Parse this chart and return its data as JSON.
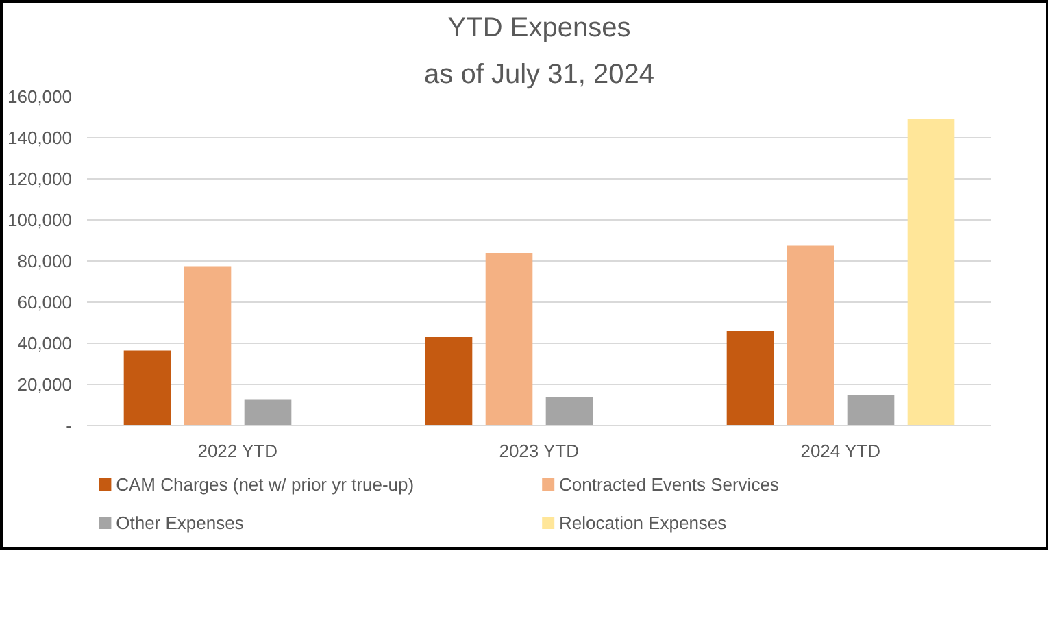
{
  "chart_data": {
    "type": "bar",
    "title": "YTD Expenses",
    "subtitle": "as of July 31, 2024",
    "categories": [
      "2022 YTD",
      "2023 YTD",
      "2024 YTD"
    ],
    "series": [
      {
        "name": "CAM Charges (net w/ prior yr true-up)",
        "color": "#c55a11",
        "values": [
          36500,
          43000,
          46000
        ]
      },
      {
        "name": "Contracted Events Services",
        "color": "#f4b183",
        "values": [
          77500,
          84000,
          87500
        ]
      },
      {
        "name": "Other Expenses",
        "color": "#a5a5a5",
        "values": [
          12500,
          14000,
          15000
        ]
      },
      {
        "name": "Relocation Expenses",
        "color": "#ffe699",
        "values": [
          null,
          null,
          149000
        ]
      }
    ],
    "ylim": [
      0,
      160000
    ],
    "yticks": [
      {
        "value": 0,
        "label": "-"
      },
      {
        "value": 20000,
        "label": "20,000"
      },
      {
        "value": 40000,
        "label": "40,000"
      },
      {
        "value": 60000,
        "label": "60,000"
      },
      {
        "value": 80000,
        "label": "80,000"
      },
      {
        "value": 100000,
        "label": "100,000"
      },
      {
        "value": 120000,
        "label": "120,000"
      },
      {
        "value": 140000,
        "label": "140,000"
      },
      {
        "value": 160000,
        "label": "160,000"
      }
    ],
    "grid": "y",
    "legend": "bottom"
  }
}
